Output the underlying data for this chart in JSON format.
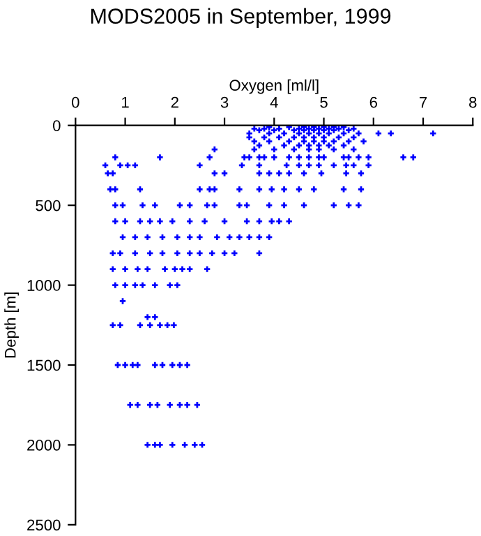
{
  "chart_data": {
    "type": "scatter",
    "title": "MODS2005 in September, 1999",
    "xlabel": "Oxygen [ml/l]",
    "ylabel": "Depth [m]",
    "xlim": [
      0,
      8
    ],
    "xticks": [
      0,
      1,
      2,
      3,
      4,
      5,
      6,
      7,
      8
    ],
    "ylim": [
      2500,
      0
    ],
    "yticks": [
      0,
      500,
      1000,
      1500,
      2000,
      2500
    ],
    "grid": false,
    "marker": "cross",
    "series": [
      {
        "color": "#0000ff",
        "x": [
          3.9,
          4.3,
          4.6,
          4.8,
          5.0,
          5.2,
          5.4,
          3.6,
          3.8,
          4.1,
          4.5,
          4.7,
          4.9,
          5.1,
          5.3,
          5.6,
          3.7,
          4.0,
          4.4,
          4.6,
          4.8,
          5.0,
          5.2,
          5.5,
          3.5,
          3.9,
          4.2,
          4.5,
          4.7,
          4.9,
          5.1,
          5.4,
          5.7,
          6.1,
          6.35,
          7.2,
          3.5,
          3.8,
          4.1,
          4.4,
          4.6,
          4.8,
          5.0,
          5.3,
          5.6,
          3.6,
          3.9,
          4.3,
          4.6,
          4.8,
          5.0,
          5.2,
          5.5,
          5.8,
          3.7,
          4.2,
          4.5,
          4.7,
          4.9,
          5.1,
          5.4,
          2.8,
          3.6,
          4.0,
          4.4,
          4.7,
          4.9,
          5.2,
          5.6,
          0.8,
          1.7,
          2.7,
          3.4,
          3.5,
          3.7,
          3.8,
          4.0,
          4.3,
          4.5,
          4.7,
          4.9,
          5.0,
          5.4,
          5.5,
          5.7,
          5.9,
          6.6,
          6.8,
          0.6,
          0.9,
          1.05,
          1.2,
          2.5,
          3.35,
          3.7,
          4.25,
          4.5,
          4.7,
          4.9,
          5.2,
          5.45,
          5.6,
          5.9,
          0.65,
          0.75,
          2.8,
          3.0,
          3.7,
          3.9,
          4.1,
          4.3,
          4.6,
          4.95,
          5.45,
          5.75,
          0.7,
          0.8,
          1.3,
          2.5,
          2.7,
          2.8,
          3.3,
          3.7,
          3.95,
          4.2,
          4.5,
          4.8,
          5.4,
          5.75,
          0.8,
          0.95,
          1.35,
          1.6,
          2.1,
          2.3,
          2.65,
          2.8,
          3.3,
          3.45,
          3.9,
          4.2,
          4.6,
          5.2,
          5.5,
          5.7,
          0.8,
          1.0,
          1.3,
          1.5,
          1.7,
          1.95,
          2.3,
          2.6,
          3.0,
          3.45,
          3.7,
          3.95,
          4.1,
          4.3,
          0.95,
          1.2,
          1.45,
          1.75,
          2.05,
          2.3,
          2.5,
          2.85,
          3.1,
          3.3,
          3.5,
          3.7,
          3.9,
          0.75,
          0.9,
          1.2,
          1.5,
          1.75,
          2.05,
          2.3,
          2.5,
          2.75,
          3.0,
          3.2,
          3.7,
          0.75,
          1.0,
          1.25,
          1.45,
          1.8,
          2.0,
          2.15,
          2.3,
          2.65,
          0.8,
          1.0,
          1.2,
          1.35,
          1.6,
          1.9,
          2.05,
          0.95,
          1.45,
          1.6,
          0.75,
          0.9,
          1.3,
          1.5,
          1.7,
          1.85,
          1.98,
          0.85,
          1.0,
          1.15,
          1.25,
          1.6,
          1.75,
          1.95,
          2.1,
          2.25,
          1.1,
          1.25,
          1.5,
          1.65,
          1.9,
          2.1,
          2.25,
          2.45,
          1.45,
          1.6,
          1.7,
          1.95,
          2.2,
          2.4,
          2.55
        ],
        "values": [
          10,
          10,
          10,
          10,
          10,
          10,
          10,
          20,
          20,
          20,
          20,
          20,
          20,
          20,
          20,
          20,
          30,
          30,
          30,
          30,
          30,
          30,
          30,
          30,
          50,
          50,
          50,
          50,
          50,
          50,
          50,
          50,
          50,
          50,
          50,
          50,
          75,
          75,
          75,
          75,
          75,
          75,
          75,
          75,
          75,
          100,
          100,
          100,
          100,
          100,
          100,
          100,
          100,
          100,
          125,
          125,
          125,
          125,
          125,
          125,
          125,
          150,
          150,
          150,
          150,
          150,
          150,
          150,
          150,
          200,
          200,
          200,
          200,
          200,
          200,
          200,
          200,
          200,
          200,
          200,
          200,
          200,
          200,
          200,
          200,
          200,
          200,
          200,
          250,
          250,
          250,
          250,
          250,
          250,
          250,
          250,
          250,
          250,
          250,
          250,
          250,
          250,
          250,
          300,
          300,
          300,
          300,
          300,
          300,
          300,
          300,
          300,
          300,
          300,
          300,
          400,
          400,
          400,
          400,
          400,
          400,
          400,
          400,
          400,
          400,
          400,
          400,
          400,
          400,
          500,
          500,
          500,
          500,
          500,
          500,
          500,
          500,
          500,
          500,
          500,
          500,
          500,
          500,
          500,
          500,
          600,
          600,
          600,
          600,
          600,
          600,
          600,
          600,
          600,
          600,
          600,
          600,
          600,
          600,
          700,
          700,
          700,
          700,
          700,
          700,
          700,
          700,
          700,
          700,
          700,
          700,
          700,
          800,
          800,
          800,
          800,
          800,
          800,
          800,
          800,
          800,
          800,
          800,
          800,
          900,
          900,
          900,
          900,
          900,
          900,
          900,
          900,
          900,
          1000,
          1000,
          1000,
          1000,
          1000,
          1000,
          1000,
          1100,
          1200,
          1200,
          1250,
          1250,
          1250,
          1250,
          1250,
          1250,
          1250,
          1500,
          1500,
          1500,
          1500,
          1500,
          1500,
          1500,
          1500,
          1500,
          1750,
          1750,
          1750,
          1750,
          1750,
          1750,
          1750,
          1750,
          2000,
          2000,
          2000,
          2000,
          2000,
          2000,
          2000
        ]
      }
    ]
  }
}
